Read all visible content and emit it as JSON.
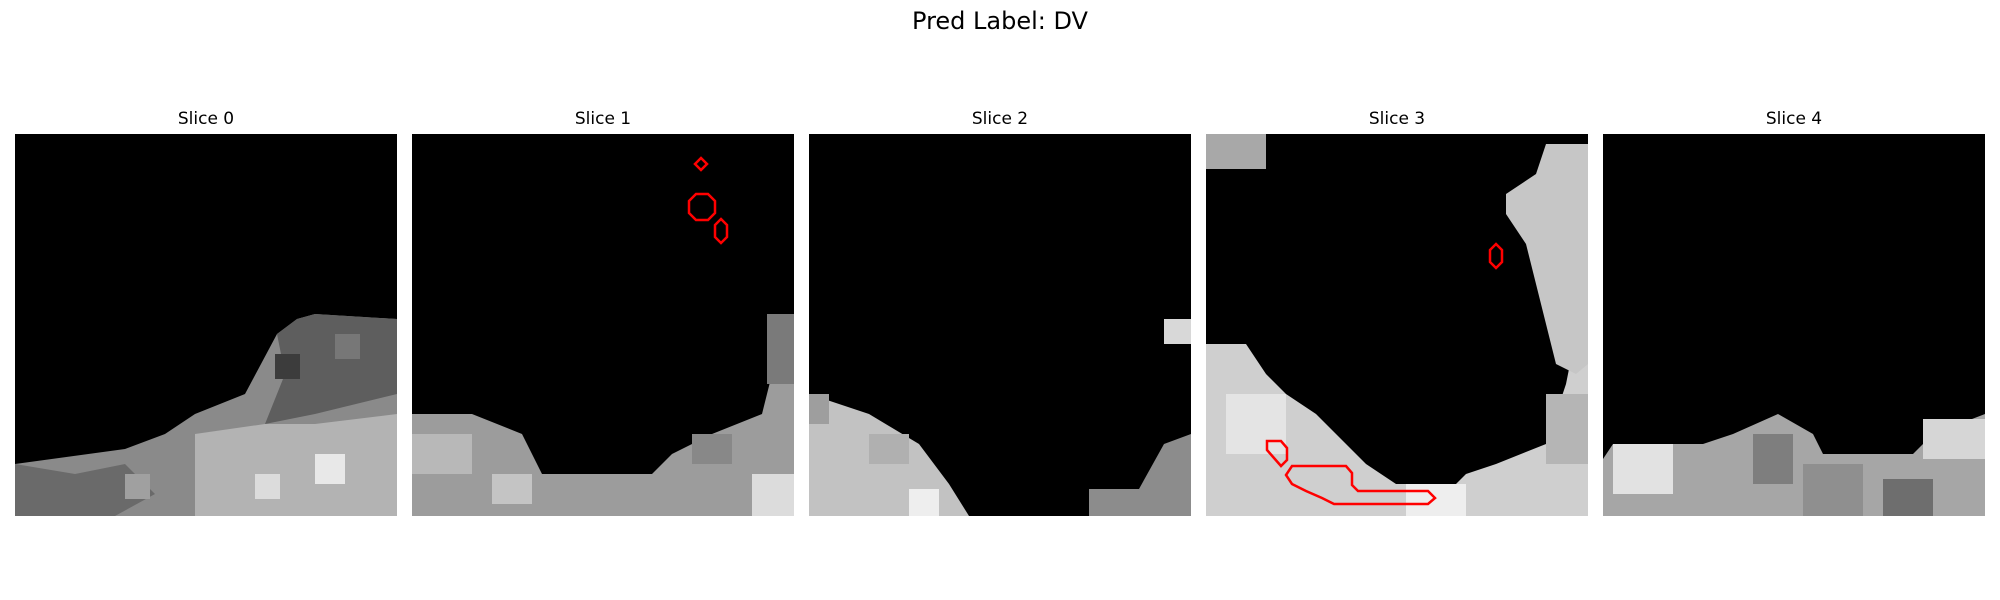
{
  "figure": {
    "title": "Pred Label: DV"
  },
  "panels": [
    {
      "title": "Slice 0",
      "contour_count": 0
    },
    {
      "title": "Slice 1",
      "contour_count": 3
    },
    {
      "title": "Slice 2",
      "contour_count": 0
    },
    {
      "title": "Slice 3",
      "contour_count": 3
    },
    {
      "title": "Slice 4",
      "contour_count": 0
    }
  ],
  "colors": {
    "background": "#000000",
    "contour": "#ff0000"
  }
}
